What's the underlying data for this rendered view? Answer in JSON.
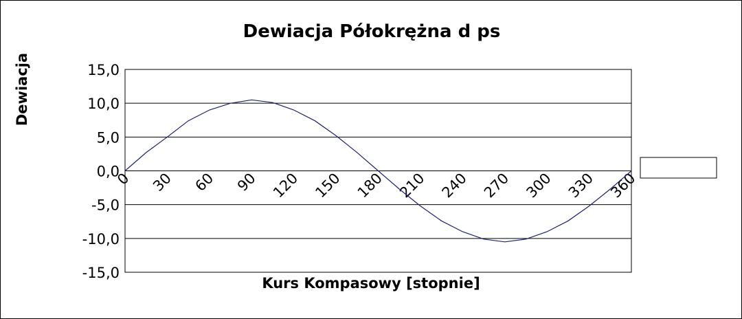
{
  "chart_data": {
    "type": "line",
    "title": "Dewiacja Półokrężna   d ps",
    "xlabel": "Kurs Kompasowy  [stopnie]",
    "ylabel": "Dewiacja",
    "x": [
      0,
      15,
      30,
      45,
      60,
      75,
      90,
      105,
      120,
      135,
      150,
      165,
      180,
      195,
      210,
      225,
      240,
      255,
      270,
      285,
      300,
      315,
      330,
      345,
      360
    ],
    "series": [
      {
        "values": [
          0.0,
          2.7,
          5.0,
          7.4,
          9.0,
          10.0,
          10.5,
          10.1,
          9.0,
          7.4,
          5.2,
          2.7,
          0.0,
          -2.7,
          -5.2,
          -7.4,
          -9.0,
          -10.1,
          -10.5,
          -10.1,
          -9.0,
          -7.4,
          -5.2,
          -2.7,
          0.0
        ],
        "color": "#1f1f7a"
      }
    ],
    "x_ticks": [
      "0",
      "30",
      "60",
      "90",
      "120",
      "150",
      "180",
      "210",
      "240",
      "270",
      "300",
      "330",
      "360"
    ],
    "y_ticks": [
      "15,0",
      "10,0",
      "5,0",
      "0,0",
      "-5,0",
      "-10,0",
      "-15,0"
    ],
    "xlim": [
      0,
      360
    ],
    "ylim": [
      -15,
      15
    ],
    "grid": "horizontal",
    "legend": "right",
    "legend_entries": [
      ""
    ]
  }
}
